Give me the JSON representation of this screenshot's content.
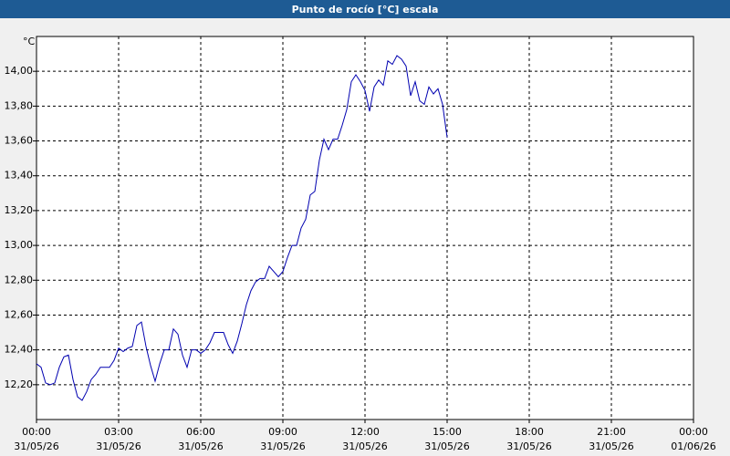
{
  "chart_data": {
    "type": "line",
    "title": "Punto de rocío [°C] escala",
    "y_unit": "°C",
    "x": [
      0,
      10,
      20,
      30,
      40,
      50,
      60,
      70,
      80,
      90,
      100,
      110,
      120,
      130,
      140,
      150,
      160,
      170,
      180,
      190,
      200,
      210,
      220,
      230,
      240,
      250,
      260,
      270,
      280,
      290,
      300,
      310,
      320,
      330,
      340,
      350,
      360,
      370,
      380,
      390,
      400,
      410,
      420,
      430,
      440,
      450,
      460,
      470,
      480,
      490,
      500,
      510,
      520,
      530,
      540,
      550,
      560,
      570,
      580,
      590,
      600,
      610,
      620,
      630,
      640,
      650,
      660,
      670,
      680,
      690,
      700,
      710,
      720,
      730,
      740,
      750,
      760,
      770,
      780,
      790,
      800,
      810,
      820,
      830,
      840,
      850,
      860,
      870,
      880,
      890,
      900
    ],
    "series": [
      {
        "name": "Punto de rocío",
        "color": "#0000b0",
        "values": [
          12.32,
          12.3,
          12.21,
          12.2,
          12.21,
          12.3,
          12.36,
          12.37,
          12.23,
          12.13,
          12.11,
          12.16,
          12.23,
          12.26,
          12.3,
          12.3,
          12.3,
          12.34,
          12.41,
          12.39,
          12.41,
          12.42,
          12.54,
          12.56,
          12.42,
          12.31,
          12.22,
          12.32,
          12.4,
          12.4,
          12.52,
          12.49,
          12.37,
          12.3,
          12.4,
          12.4,
          12.38,
          12.4,
          12.44,
          12.5,
          12.5,
          12.5,
          12.43,
          12.38,
          12.45,
          12.55,
          12.66,
          12.74,
          12.79,
          12.81,
          12.81,
          12.88,
          12.85,
          12.82,
          12.85,
          12.93,
          13.0,
          13.0,
          13.1,
          13.15,
          13.29,
          13.31,
          13.49,
          13.61,
          13.55,
          13.61,
          13.61,
          13.69,
          13.78,
          13.94,
          13.98,
          13.94,
          13.89,
          13.77,
          13.91,
          13.95,
          13.92,
          14.06,
          14.04,
          14.09,
          14.07,
          14.03,
          13.86,
          13.94,
          13.83,
          13.81,
          13.91,
          13.87,
          13.9,
          13.81,
          13.62
        ]
      }
    ],
    "xlim": [
      0,
      1440
    ],
    "xticks": [
      {
        "value": 0,
        "label": "00:00",
        "date": "31/05/26"
      },
      {
        "value": 180,
        "label": "03:00",
        "date": "31/05/26"
      },
      {
        "value": 360,
        "label": "06:00",
        "date": "31/05/26"
      },
      {
        "value": 540,
        "label": "09:00",
        "date": "31/05/26"
      },
      {
        "value": 720,
        "label": "12:00",
        "date": "31/05/26"
      },
      {
        "value": 900,
        "label": "15:00",
        "date": "31/05/26"
      },
      {
        "value": 1080,
        "label": "18:00",
        "date": "31/05/26"
      },
      {
        "value": 1260,
        "label": "21:00",
        "date": "31/05/26"
      },
      {
        "value": 1440,
        "label": "00:00",
        "date": "01/06/26"
      }
    ],
    "ylim": [
      12.0,
      14.2
    ],
    "yticks": [
      {
        "value": 12.2,
        "label": "12,20"
      },
      {
        "value": 12.4,
        "label": "12,40"
      },
      {
        "value": 12.6,
        "label": "12,60"
      },
      {
        "value": 12.8,
        "label": "12,80"
      },
      {
        "value": 13.0,
        "label": "13,00"
      },
      {
        "value": 13.2,
        "label": "13,20"
      },
      {
        "value": 13.4,
        "label": "13,40"
      },
      {
        "value": 13.6,
        "label": "13,60"
      },
      {
        "value": 13.8,
        "label": "13,80"
      },
      {
        "value": 14.0,
        "label": "14,00"
      }
    ],
    "grid": true
  }
}
